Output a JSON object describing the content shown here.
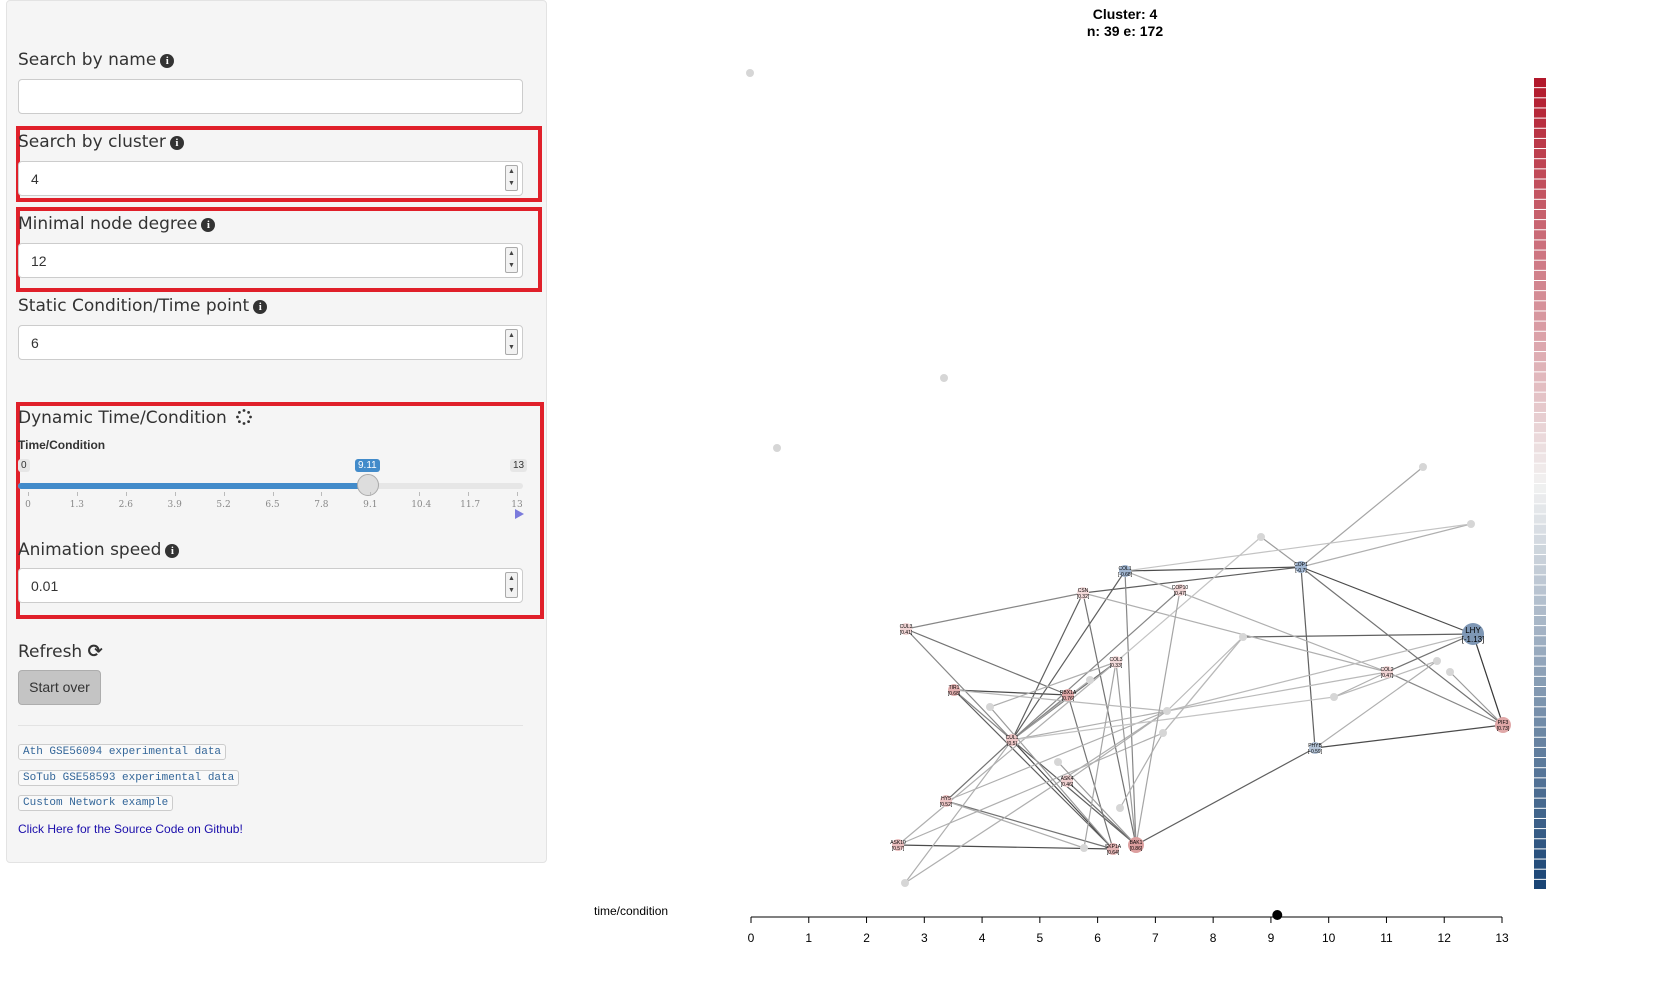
{
  "sidebar": {
    "search_name": {
      "label": "Search by name",
      "value": "",
      "placeholder": ""
    },
    "search_cluster": {
      "label": "Search by cluster",
      "value": "4"
    },
    "min_degree": {
      "label": "Minimal node degree",
      "value": "12"
    },
    "static_time": {
      "label": "Static Condition/Time point",
      "value": "6"
    },
    "dynamic": {
      "label": "Dynamic Time/Condition",
      "slider_label": "Time/Condition",
      "min": "0",
      "max": "13",
      "value": "9.11",
      "value_number": 9.11,
      "ticks": [
        "0",
        "1.3",
        "2.6",
        "3.9",
        "5.2",
        "6.5",
        "7.8",
        "9.1",
        "10.4",
        "11.7",
        "13"
      ]
    },
    "animation_speed": {
      "label": "Animation speed",
      "value": "0.01"
    },
    "refresh": {
      "label": "Refresh",
      "start_over": "Start over"
    },
    "links": [
      "Ath GSE56094 experimental data",
      "SoTub GSE58593 experimental data",
      "Custom Network example"
    ],
    "github_link": "Click Here for the Source Code on Github!"
  },
  "plot": {
    "title_line1": "Cluster: 4",
    "title_line2": "n: 39 e: 172",
    "axis_label": "time/condition",
    "axis_ticks": [
      "0",
      "1",
      "2",
      "3",
      "4",
      "5",
      "6",
      "7",
      "8",
      "9",
      "10",
      "11",
      "12",
      "13"
    ],
    "current_time": 9.11,
    "nodes": [
      {
        "id": "COL1",
        "label": "COL1",
        "val": "[-0.68]",
        "color": "#9fb4cf"
      },
      {
        "id": "COP1",
        "label": "COP1",
        "val": "[-0.7]",
        "color": "#9fb4cf"
      },
      {
        "id": "LHY",
        "label": "LHY",
        "val": "[-1.13]",
        "color": "#7e97b5"
      },
      {
        "id": "PIF3",
        "label": "PIF3",
        "val": "[0.73]",
        "color": "#e0a8a8"
      },
      {
        "id": "PHYB",
        "label": "PHYB",
        "val": "[-0.59]",
        "color": "#b4c4d8"
      },
      {
        "id": "COL2",
        "label": "COL2",
        "val": "[0.47]",
        "color": "#f0d4d4"
      },
      {
        "id": "CSN",
        "label": "CSN",
        "val": "[0.32]",
        "color": "#f3dada"
      },
      {
        "id": "COP10",
        "label": "COP10",
        "val": "[0.47]",
        "color": "#f0d4d4"
      },
      {
        "id": "CUL3",
        "label": "CUL3",
        "val": "[0.41]",
        "color": "#f0d4d4"
      },
      {
        "id": "TIR1",
        "label": "TIR1",
        "val": "[0.68]",
        "color": "#e4b0b0"
      },
      {
        "id": "RBX1A",
        "label": "RBX1A",
        "val": "[0.76]",
        "color": "#e0a8a8"
      },
      {
        "id": "CUL1",
        "label": "CUL1",
        "val": "[0.5]",
        "color": "#eec7c7"
      },
      {
        "id": "ASK4",
        "label": "ASK4",
        "val": "[0.46]",
        "color": "#f0d0d0"
      },
      {
        "id": "HY5",
        "label": "HY5",
        "val": "[0.52]",
        "color": "#ecc4c4"
      },
      {
        "id": "ASK10",
        "label": "ASK10",
        "val": "[0.57]",
        "color": "#ebc0c0"
      },
      {
        "id": "SKP1A",
        "label": "SKP1A",
        "val": "[0.64]",
        "color": "#e4b4b4"
      },
      {
        "id": "BAK1",
        "label": "BAK1",
        "val": "[0.86]",
        "color": "#dc9e9e"
      },
      {
        "id": "COL3",
        "label": "COL3",
        "val": "[0.33]",
        "color": "#f3dada"
      }
    ]
  },
  "colors": {
    "highlight_red": "#e0202a",
    "slider_blue": "#428bca",
    "neg_color": "#1a4575",
    "pos_color": "#b2182b"
  }
}
